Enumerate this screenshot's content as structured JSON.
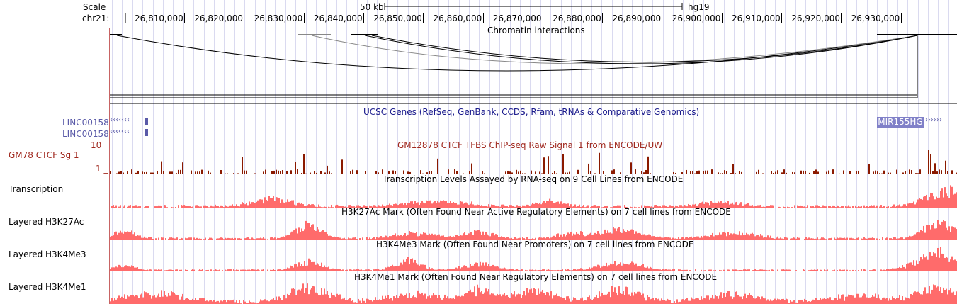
{
  "ruler": {
    "scale_label": "Scale",
    "chrom_label": "chr21:",
    "scale_bar_label": "50 kb",
    "assembly": "hg19",
    "positions": [
      "26,810,000",
      "26,820,000",
      "26,830,000",
      "26,840,000",
      "26,850,000",
      "26,860,000",
      "26,870,000",
      "26,880,000",
      "26,890,000",
      "26,900,000",
      "26,910,000",
      "26,920,000",
      "26,930,000"
    ]
  },
  "tracks": {
    "chromatin": {
      "title": "Chromatin interactions"
    },
    "genes": {
      "title": "UCSC Genes (RefSeq, GenBank, CCDS, Rfam, tRNAs & Comparative Genomics)",
      "items": [
        "LINC00158",
        "LINC00158",
        "MIR155HG"
      ],
      "arrow_left": "‹‹‹‹‹‹‹",
      "arrow_right": "››››››"
    },
    "ctcf": {
      "label": "GM78 CTCF Sg 1",
      "title": "GM12878 CTCF TFBS ChIP-seq Raw Signal 1 from ENCODE/UW",
      "max": "10 _",
      "min": "1 _"
    },
    "transcription": {
      "label": "Transcription",
      "title": "Transcription Levels Assayed by RNA-seq on 9 Cell Lines from ENCODE"
    },
    "h3k27ac": {
      "label": "Layered H3K27Ac",
      "title": "H3K27Ac Mark (Often Found Near Active Regulatory Elements) on 7 cell lines from ENCODE"
    },
    "h3k4me3": {
      "label": "Layered H3K4Me3",
      "title": "H3K4Me3 Mark (Often Found Near Promoters) on 7 cell lines from ENCODE"
    },
    "h3k4me1": {
      "label": "Layered H3K4Me1",
      "title": "H3K4Me1 Mark (Often Found Near Regulatory Elements) on 7 cell lines from ENCODE"
    }
  },
  "colors": {
    "ctcf": "#8b1a00",
    "histone": "#ff6b6b",
    "gene": "#5a5aa8",
    "grid": "#dadaf0",
    "ctcf_text": "#a0281e",
    "genes_title": "#1a1a8c"
  }
}
